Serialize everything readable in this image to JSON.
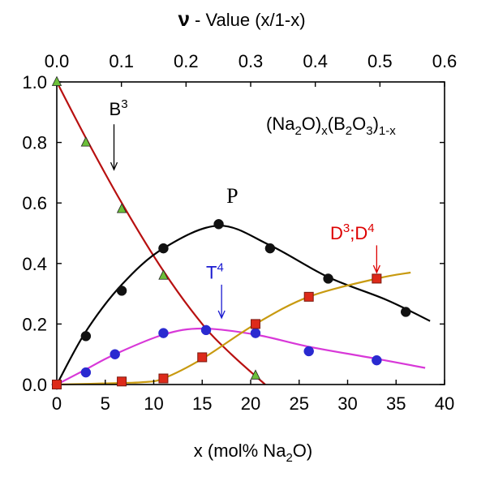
{
  "chart_data": {
    "type": "scatter",
    "bottom_axis": {
      "label_main": "x (mol% Na",
      "label_sub": "2",
      "label_end": "O)",
      "range": [
        0,
        40
      ],
      "ticks": [
        "0",
        "5",
        "10",
        "15",
        "20",
        "25",
        "30",
        "35",
        "40"
      ]
    },
    "top_axis": {
      "symbol": "ν",
      "label": " - Value (x/1-x)",
      "range": [
        0,
        0.6
      ],
      "ticks": [
        "0.0",
        "0.1",
        "0.2",
        "0.3",
        "0.4",
        "0.5",
        "0.6"
      ]
    },
    "left_axis": {
      "range": [
        0,
        1.0
      ],
      "ticks": [
        "0.0",
        "0.2",
        "0.4",
        "0.6",
        "0.8",
        "1.0"
      ]
    },
    "composition": {
      "p1": "(Na",
      "s1": "2",
      "p2": "O)",
      "s2": "x",
      "p3": "(B",
      "s3": "2",
      "p4": "O",
      "s4": "3",
      "p5": ")",
      "s5": "1-x"
    },
    "series": [
      {
        "label": "B",
        "label_sup": "3",
        "marker": "triangle",
        "marker_fill": "#6cbf3a",
        "line_color": "#b81010",
        "points": [
          [
            0,
            1.0
          ],
          [
            3,
            0.8
          ],
          [
            6.7,
            0.58
          ],
          [
            11,
            0.36
          ],
          [
            20.5,
            0.03
          ]
        ],
        "curve": [
          [
            0,
            1.0
          ],
          [
            3,
            0.815
          ],
          [
            6.7,
            0.6
          ],
          [
            11,
            0.375
          ],
          [
            15,
            0.2
          ],
          [
            18,
            0.1
          ],
          [
            21.5,
            0.0
          ]
        ]
      },
      {
        "label": "P",
        "marker": "circle",
        "marker_fill": "#111111",
        "line_color": "#000000",
        "points": [
          [
            0,
            0.0
          ],
          [
            3,
            0.16
          ],
          [
            6.7,
            0.31
          ],
          [
            11,
            0.45
          ],
          [
            16.7,
            0.53
          ],
          [
            22,
            0.45
          ],
          [
            28,
            0.35
          ],
          [
            36,
            0.24
          ]
        ],
        "curve": [
          [
            0,
            0.0
          ],
          [
            3,
            0.175
          ],
          [
            6.7,
            0.33
          ],
          [
            11,
            0.45
          ],
          [
            16.7,
            0.525
          ],
          [
            22,
            0.46
          ],
          [
            28,
            0.355
          ],
          [
            34,
            0.28
          ],
          [
            38.5,
            0.21
          ]
        ]
      },
      {
        "label": "T",
        "label_sup": "4",
        "marker": "circle",
        "marker_fill": "#2a2ad0",
        "line_color": "#d838d8",
        "points": [
          [
            0,
            0.0
          ],
          [
            3,
            0.04
          ],
          [
            6,
            0.1
          ],
          [
            11,
            0.17
          ],
          [
            15.4,
            0.18
          ],
          [
            20.5,
            0.17
          ],
          [
            26,
            0.11
          ],
          [
            33,
            0.08
          ]
        ],
        "curve": [
          [
            0,
            0.0
          ],
          [
            3,
            0.05
          ],
          [
            6,
            0.1
          ],
          [
            11,
            0.165
          ],
          [
            15,
            0.185
          ],
          [
            20.5,
            0.165
          ],
          [
            26,
            0.125
          ],
          [
            33,
            0.085
          ],
          [
            38,
            0.055
          ]
        ]
      },
      {
        "label": "D",
        "label_sup": "3",
        "label_sep": ";D",
        "label_sup2": "4",
        "marker": "square",
        "marker_fill": "#dd2a1a",
        "line_color": "#c89a10",
        "points": [
          [
            0,
            0.0
          ],
          [
            6.7,
            0.01
          ],
          [
            11,
            0.02
          ],
          [
            15,
            0.09
          ],
          [
            20.5,
            0.2
          ],
          [
            26,
            0.29
          ],
          [
            33,
            0.35
          ]
        ],
        "curve": [
          [
            0,
            0.0
          ],
          [
            6.7,
            0.005
          ],
          [
            9,
            0.008
          ],
          [
            11,
            0.02
          ],
          [
            15,
            0.085
          ],
          [
            20.5,
            0.2
          ],
          [
            26,
            0.29
          ],
          [
            33,
            0.35
          ],
          [
            36.5,
            0.37
          ]
        ]
      }
    ],
    "annotations": [
      {
        "series": "B",
        "color": "#000000",
        "arrow": [
          [
            5.9,
            0.86
          ],
          [
            5.9,
            0.71
          ]
        ],
        "text_pos": [
          5.4,
          0.89
        ]
      },
      {
        "series": "P",
        "color": "#000000",
        "text_pos": [
          17.5,
          0.6
        ]
      },
      {
        "series": "T",
        "color": "#1a1ad0",
        "arrow": [
          [
            17,
            0.33
          ],
          [
            17,
            0.22
          ]
        ],
        "text_pos": [
          15.4,
          0.35
        ]
      },
      {
        "series": "D",
        "color": "#dd0000",
        "arrow": [
          [
            33,
            0.46
          ],
          [
            33,
            0.37
          ]
        ],
        "text_pos": [
          28.2,
          0.48
        ]
      }
    ],
    "grid": false,
    "legend": "none"
  }
}
